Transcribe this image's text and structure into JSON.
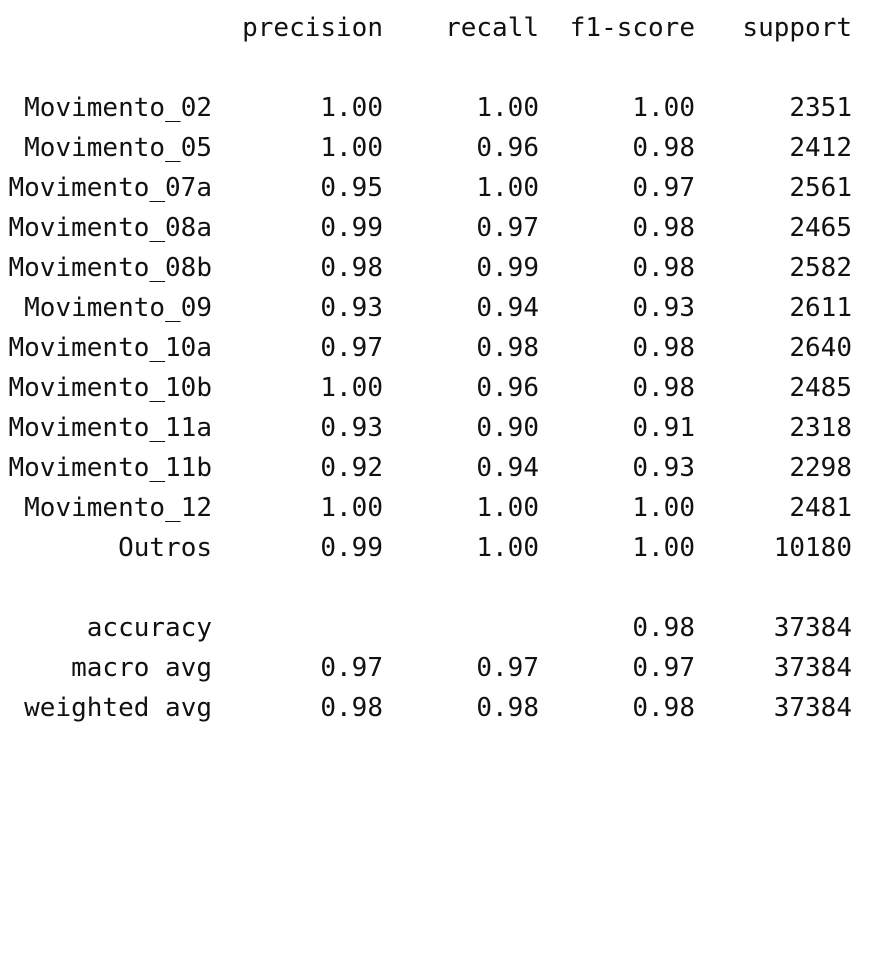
{
  "report": {
    "headers": {
      "precision": "precision",
      "recall": "recall",
      "f1": "f1-score",
      "support": "support"
    },
    "rows": [
      {
        "label": "Movimento_02",
        "precision": "1.00",
        "recall": "1.00",
        "f1": "1.00",
        "support": "2351"
      },
      {
        "label": "Movimento_05",
        "precision": "1.00",
        "recall": "0.96",
        "f1": "0.98",
        "support": "2412"
      },
      {
        "label": "Movimento_07a",
        "precision": "0.95",
        "recall": "1.00",
        "f1": "0.97",
        "support": "2561"
      },
      {
        "label": "Movimento_08a",
        "precision": "0.99",
        "recall": "0.97",
        "f1": "0.98",
        "support": "2465"
      },
      {
        "label": "Movimento_08b",
        "precision": "0.98",
        "recall": "0.99",
        "f1": "0.98",
        "support": "2582"
      },
      {
        "label": "Movimento_09",
        "precision": "0.93",
        "recall": "0.94",
        "f1": "0.93",
        "support": "2611"
      },
      {
        "label": "Movimento_10a",
        "precision": "0.97",
        "recall": "0.98",
        "f1": "0.98",
        "support": "2640"
      },
      {
        "label": "Movimento_10b",
        "precision": "1.00",
        "recall": "0.96",
        "f1": "0.98",
        "support": "2485"
      },
      {
        "label": "Movimento_11a",
        "precision": "0.93",
        "recall": "0.90",
        "f1": "0.91",
        "support": "2318"
      },
      {
        "label": "Movimento_11b",
        "precision": "0.92",
        "recall": "0.94",
        "f1": "0.93",
        "support": "2298"
      },
      {
        "label": "Movimento_12",
        "precision": "1.00",
        "recall": "1.00",
        "f1": "1.00",
        "support": "2481"
      },
      {
        "label": "Outros",
        "precision": "0.99",
        "recall": "1.00",
        "f1": "1.00",
        "support": "10180"
      }
    ],
    "summary": [
      {
        "label": "accuracy",
        "precision": "",
        "recall": "",
        "f1": "0.98",
        "support": "37384"
      },
      {
        "label": "macro avg",
        "precision": "0.97",
        "recall": "0.97",
        "f1": "0.97",
        "support": "37384"
      },
      {
        "label": "weighted avg",
        "precision": "0.98",
        "recall": "0.98",
        "f1": "0.98",
        "support": "37384"
      }
    ]
  }
}
